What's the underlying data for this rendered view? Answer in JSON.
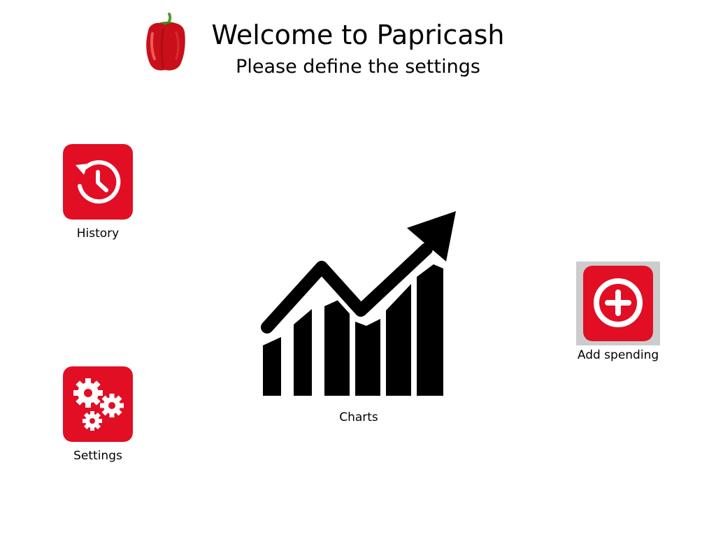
{
  "header": {
    "title": "Welcome to Papricash",
    "subtitle": "Please define the settings",
    "logo_icon": "red-bell-pepper"
  },
  "tiles": {
    "history": {
      "label": "History",
      "icon": "history-clock-icon"
    },
    "settings": {
      "label": "Settings",
      "icon": "gears-icon"
    },
    "charts": {
      "label": "Charts",
      "icon": "rising-bar-chart-icon"
    },
    "add_spending": {
      "label": "Add spending",
      "icon": "plus-circle-icon",
      "focused": true
    }
  },
  "colors": {
    "accent": "#e20e24",
    "background": "#ffffff",
    "icon_glyph": "#ffffff",
    "chart_glyph": "#000000",
    "focus_frame": "#cccccc"
  }
}
